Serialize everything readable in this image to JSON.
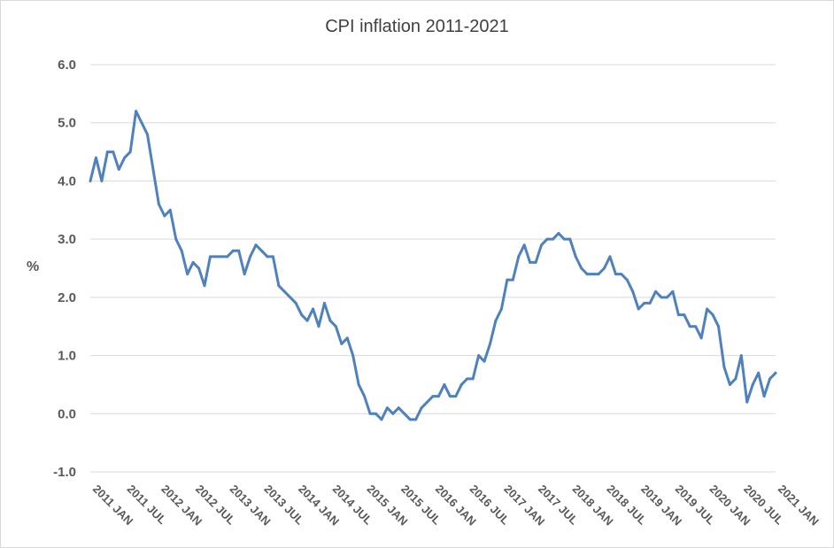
{
  "chart_data": {
    "type": "line",
    "title": "CPI inflation 2011-2021",
    "ylabel": "%",
    "xlabel": "",
    "ylim": [
      -1.0,
      6.0
    ],
    "yticks": [
      "6.0",
      "5.0",
      "4.0",
      "3.0",
      "2.0",
      "1.0",
      "0.0",
      "-1.0"
    ],
    "x_tick_labels": [
      "2011 JAN",
      "2011 JUL",
      "2012 JAN",
      "2012 JUL",
      "2013 JAN",
      "2013 JUL",
      "2014 JAN",
      "2014 JUL",
      "2015 JAN",
      "2015 JUL",
      "2016 JAN",
      "2016 JUL",
      "2017 JAN",
      "2017 JUL",
      "2018 JAN",
      "2018 JUL",
      "2019 JAN",
      "2019 JUL",
      "2020 JAN",
      "2020 JUL",
      "2021 JAN"
    ],
    "grid": true,
    "legend": "none",
    "line_color": "#4F81BD",
    "series": [
      {
        "values": [
          4.0,
          4.4,
          4.0,
          4.5,
          4.5,
          4.2,
          4.4,
          4.5,
          5.2,
          5.0,
          4.8,
          4.2,
          3.6,
          3.4,
          3.5,
          3.0,
          2.8,
          2.4,
          2.6,
          2.5,
          2.2,
          2.7,
          2.7,
          2.7,
          2.7,
          2.8,
          2.8,
          2.4,
          2.7,
          2.9,
          2.8,
          2.7,
          2.7,
          2.2,
          2.1,
          2.0,
          1.9,
          1.7,
          1.6,
          1.8,
          1.5,
          1.9,
          1.6,
          1.5,
          1.2,
          1.3,
          1.0,
          0.5,
          0.3,
          0.0,
          0.0,
          -0.1,
          0.1,
          0.0,
          0.1,
          0.0,
          -0.1,
          -0.1,
          0.1,
          0.2,
          0.3,
          0.3,
          0.5,
          0.3,
          0.3,
          0.5,
          0.6,
          0.6,
          1.0,
          0.9,
          1.2,
          1.6,
          1.8,
          2.3,
          2.3,
          2.7,
          2.9,
          2.6,
          2.6,
          2.9,
          3.0,
          3.0,
          3.1,
          3.0,
          3.0,
          2.7,
          2.5,
          2.4,
          2.4,
          2.4,
          2.5,
          2.7,
          2.4,
          2.4,
          2.3,
          2.1,
          1.8,
          1.9,
          1.9,
          2.1,
          2.0,
          2.0,
          2.1,
          1.7,
          1.7,
          1.5,
          1.5,
          1.3,
          1.8,
          1.7,
          1.5,
          0.8,
          0.5,
          0.6,
          1.0,
          0.2,
          0.5,
          0.7,
          0.3,
          0.6,
          0.7
        ]
      }
    ]
  }
}
